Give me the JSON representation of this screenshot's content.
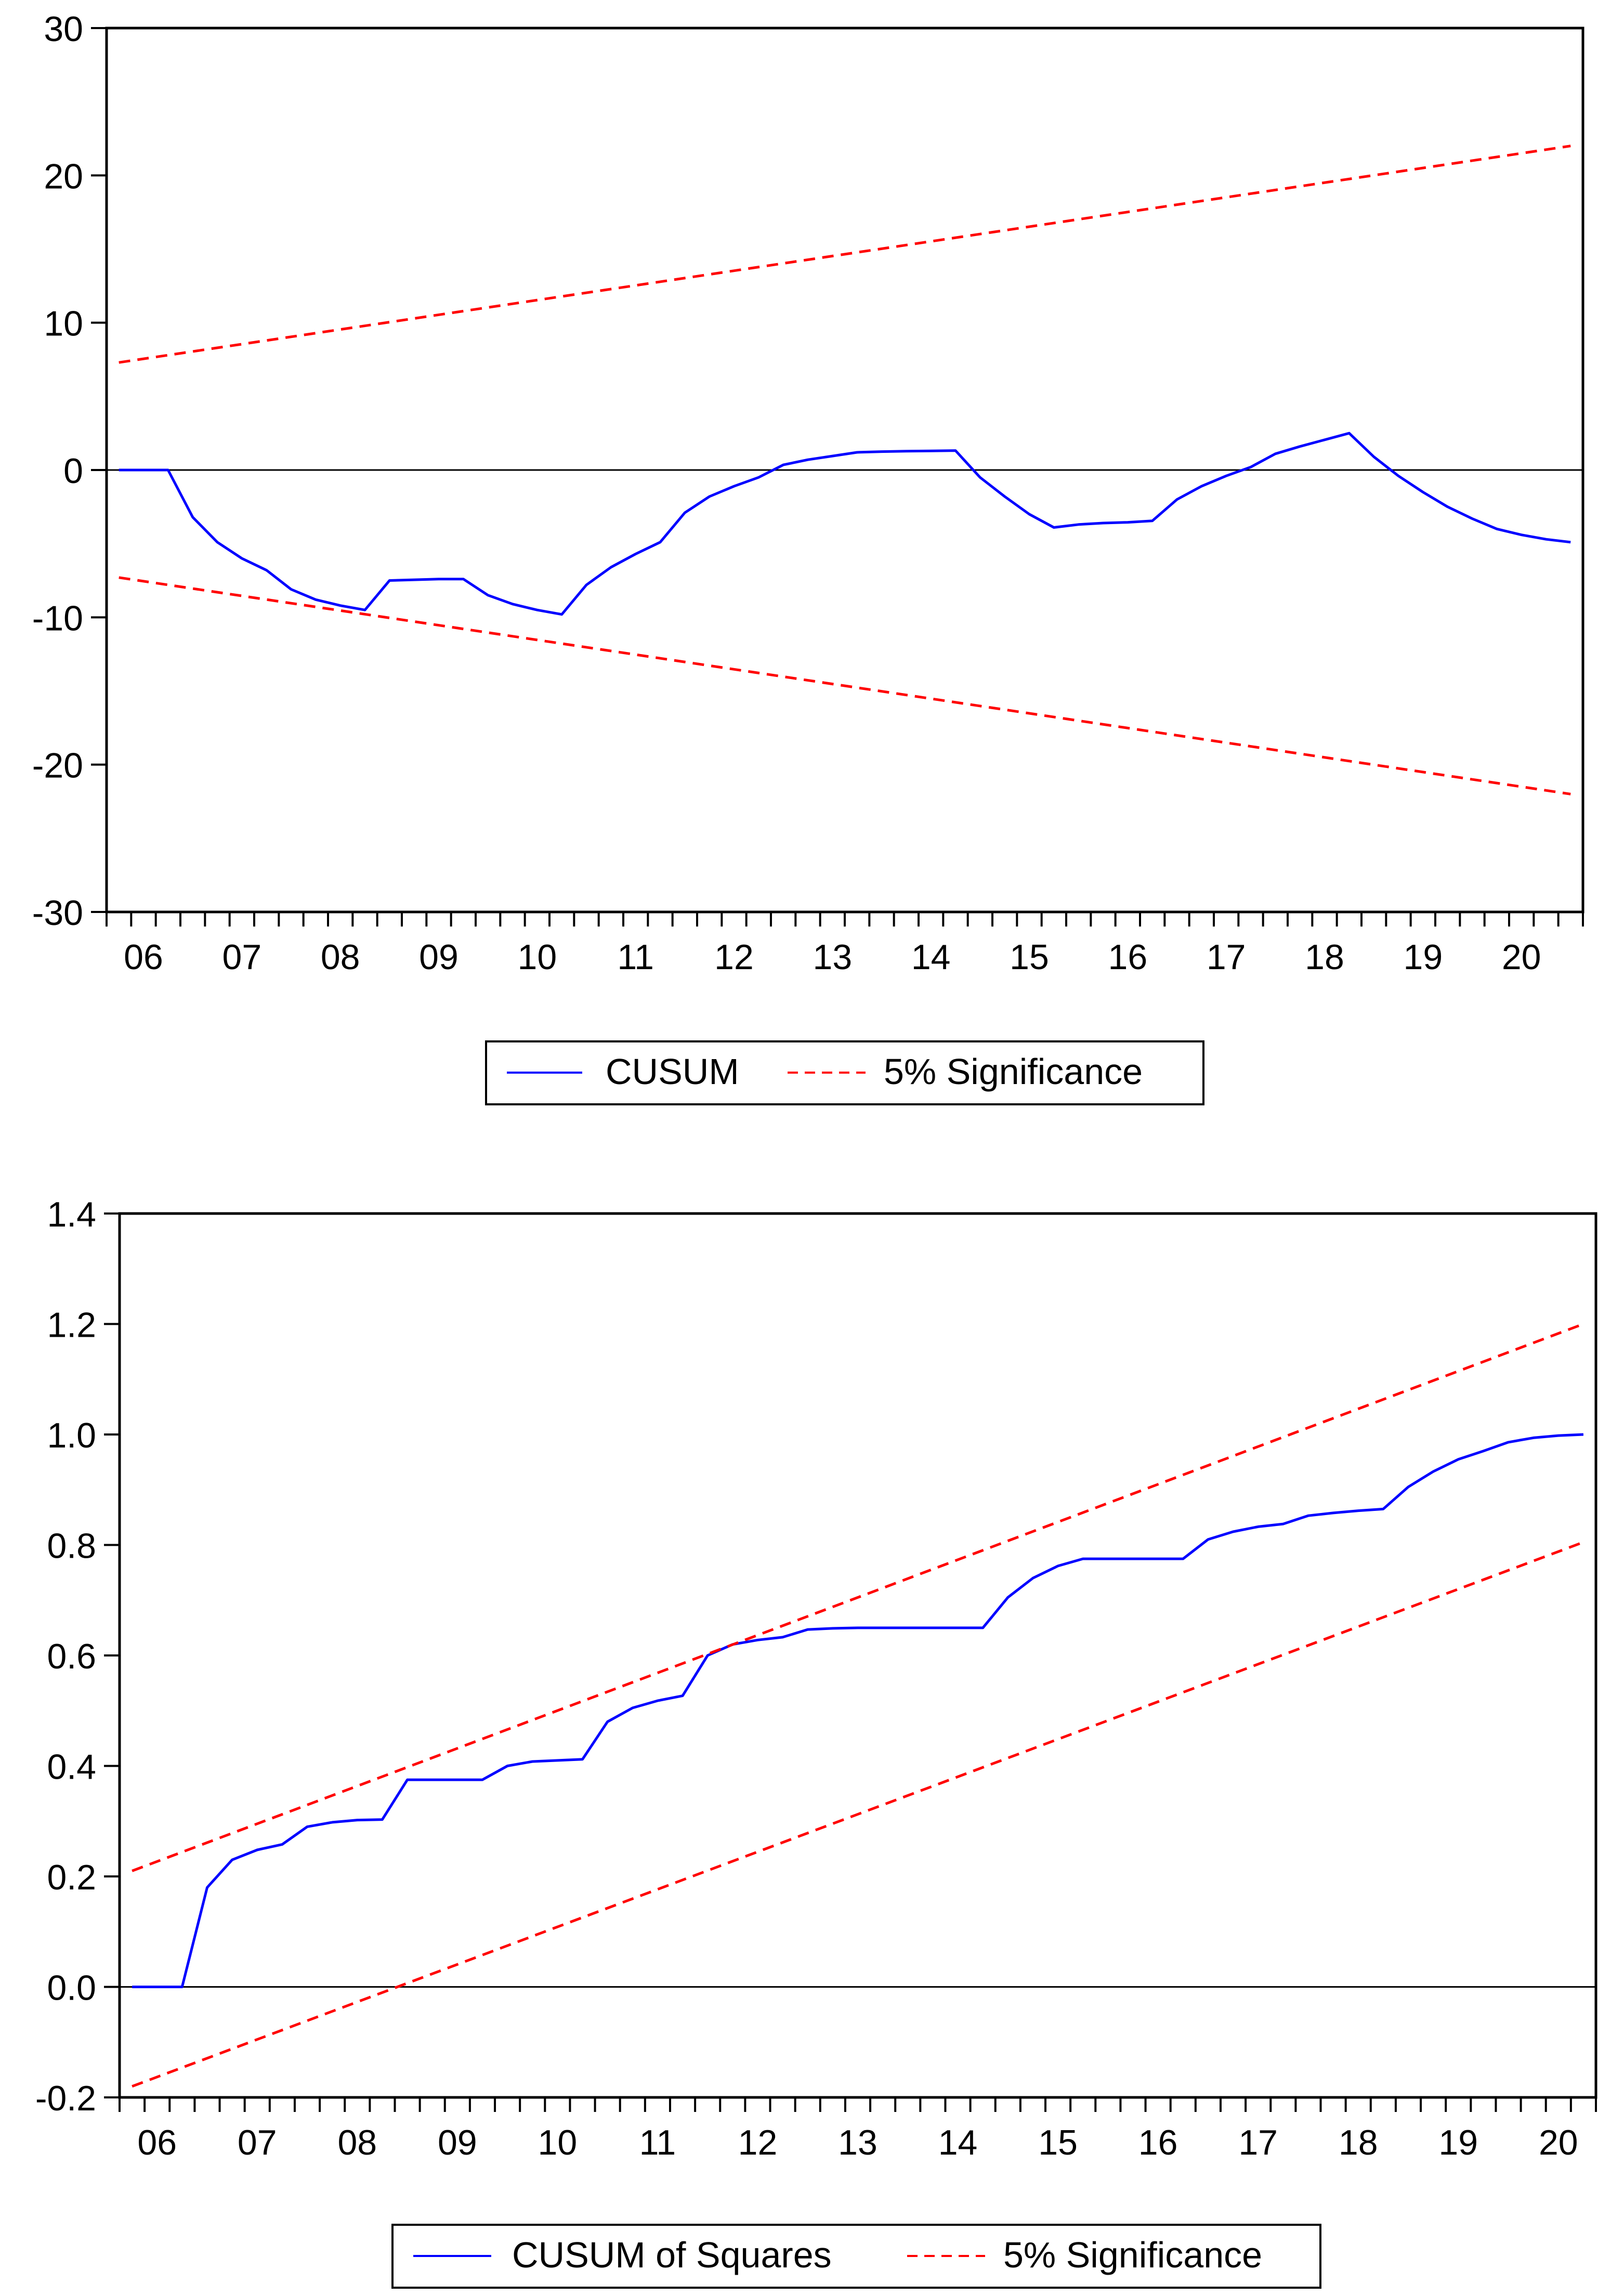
{
  "chart_data": [
    {
      "type": "line",
      "id": "cusum",
      "title": "",
      "xlabel": "",
      "ylabel": "",
      "ylim": [
        -30,
        30
      ],
      "yticks": [
        30,
        20,
        10,
        0,
        -10,
        -20,
        -30
      ],
      "ytick_labels": [
        "30",
        "20",
        "10",
        "0",
        "-10",
        "-20",
        "-30"
      ],
      "xlim": [
        0,
        60
      ],
      "year_labels": [
        "06",
        "07",
        "08",
        "09",
        "10",
        "11",
        "12",
        "13",
        "14",
        "15",
        "16",
        "17",
        "18",
        "19",
        "20"
      ],
      "zero_line": 0,
      "legend_position": "bottom-center",
      "series": [
        {
          "name": "CUSUM",
          "color": "#0000ff",
          "style": "solid",
          "x": [
            0.5,
            1.5,
            2.5,
            3.5,
            4.5,
            5.5,
            6.5,
            7.5,
            8.5,
            9.5,
            10.5,
            11.5,
            12.5,
            13.5,
            14.5,
            15.5,
            16.5,
            17.5,
            18.5,
            19.5,
            20.5,
            21.5,
            22.5,
            23.5,
            24.5,
            25.5,
            26.5,
            27.5,
            28.5,
            29.5,
            30.5,
            31.5,
            32.5,
            33.5,
            34.5,
            35.5,
            36.5,
            37.5,
            38.5,
            39.5,
            40.5,
            41.5,
            42.5,
            43.5,
            44.5,
            45.5,
            46.5,
            47.5,
            48.5,
            49.5,
            50.5,
            51.5,
            52.5,
            53.5,
            54.5,
            55.5,
            56.5,
            57.5,
            58.5,
            59.5
          ],
          "values": [
            0,
            0,
            0,
            -3.2,
            -4.9,
            -6.0,
            -6.8,
            -8.1,
            -8.8,
            -9.2,
            -9.5,
            -7.5,
            -7.45,
            -7.4,
            -7.4,
            -8.5,
            -9.1,
            -9.5,
            -9.8,
            -7.8,
            -6.6,
            -5.7,
            -4.9,
            -2.9,
            -1.8,
            -1.1,
            -0.5,
            0.35,
            0.7,
            0.95,
            1.2,
            1.25,
            1.28,
            1.3,
            1.32,
            -0.5,
            -1.8,
            -3.0,
            -3.9,
            -3.7,
            -3.6,
            -3.55,
            -3.45,
            -2.0,
            -1.1,
            -0.4,
            0.2,
            1.1,
            1.6,
            2.05,
            2.5,
            0.9,
            -0.4,
            -1.5,
            -2.5,
            -3.3,
            -4.0,
            -4.4,
            -4.7,
            -4.9
          ]
        },
        {
          "name": "5% Significance",
          "color": "#ff0000",
          "style": "dashed",
          "x": [
            0.5,
            59.5
          ],
          "values": [
            7.3,
            22.0
          ]
        },
        {
          "name": "5% Significance (lower)",
          "color": "#ff0000",
          "style": "dashed",
          "x": [
            0.5,
            59.5
          ],
          "values": [
            -7.3,
            -22.0
          ]
        }
      ]
    },
    {
      "type": "line",
      "id": "cusum-squares",
      "title": "",
      "xlabel": "",
      "ylabel": "",
      "ylim": [
        -0.2,
        1.4
      ],
      "yticks": [
        1.4,
        1.2,
        1.0,
        0.8,
        0.6,
        0.4,
        0.2,
        0.0,
        -0.2
      ],
      "ytick_labels": [
        "1.4",
        "1.2",
        "1.0",
        "0.8",
        "0.6",
        "0.4",
        "0.2",
        "0.0",
        "-0.2"
      ],
      "xlim": [
        0,
        59
      ],
      "year_labels": [
        "06",
        "07",
        "08",
        "09",
        "10",
        "11",
        "12",
        "13",
        "14",
        "15",
        "16",
        "17",
        "18",
        "19",
        "20"
      ],
      "zero_line": 0,
      "legend_position": "bottom-center",
      "series": [
        {
          "name": "CUSUM of Squares",
          "color": "#0000ff",
          "style": "solid",
          "x": [
            0.5,
            1.5,
            2.5,
            3.5,
            4.5,
            5.5,
            6.5,
            7.5,
            8.5,
            9.5,
            10.5,
            11.5,
            12.5,
            13.5,
            14.5,
            15.5,
            16.5,
            17.5,
            18.5,
            19.5,
            20.5,
            21.5,
            22.5,
            23.5,
            24.5,
            25.5,
            26.5,
            27.5,
            28.5,
            29.5,
            30.5,
            31.5,
            32.5,
            33.5,
            34.5,
            35.5,
            36.5,
            37.5,
            38.5,
            39.5,
            40.5,
            41.5,
            42.5,
            43.5,
            44.5,
            45.5,
            46.5,
            47.5,
            48.5,
            49.5,
            50.5,
            51.5,
            52.5,
            53.5,
            54.5,
            55.5,
            56.5,
            57.5,
            58.5
          ],
          "values": [
            0,
            0,
            0,
            0.18,
            0.23,
            0.248,
            0.258,
            0.29,
            0.298,
            0.302,
            0.303,
            0.375,
            0.375,
            0.375,
            0.375,
            0.4,
            0.408,
            0.41,
            0.412,
            0.48,
            0.505,
            0.518,
            0.527,
            0.6,
            0.62,
            0.628,
            0.633,
            0.647,
            0.649,
            0.65,
            0.65,
            0.65,
            0.65,
            0.65,
            0.65,
            0.705,
            0.74,
            0.762,
            0.775,
            0.775,
            0.775,
            0.775,
            0.775,
            0.81,
            0.824,
            0.833,
            0.838,
            0.853,
            0.858,
            0.862,
            0.865,
            0.905,
            0.933,
            0.955,
            0.97,
            0.986,
            0.994,
            0.998,
            1.0
          ]
        },
        {
          "name": "5% Significance",
          "color": "#ff0000",
          "style": "dashed",
          "x": [
            0.5,
            58.5
          ],
          "values": [
            0.21,
            1.2
          ]
        },
        {
          "name": "5% Significance (lower)",
          "color": "#ff0000",
          "style": "dashed",
          "x": [
            0.5,
            58.5
          ],
          "values": [
            -0.18,
            0.805
          ]
        }
      ]
    }
  ],
  "legends": {
    "cusum": {
      "line_label": "CUSUM",
      "sig_label": "5% Significance"
    },
    "cusum_squares": {
      "line_label": "CUSUM of Squares",
      "sig_label": "5% Significance"
    }
  },
  "colors": {
    "line": "#0000ff",
    "bounds": "#ff0000",
    "axis": "#000000",
    "background": "#ffffff"
  }
}
